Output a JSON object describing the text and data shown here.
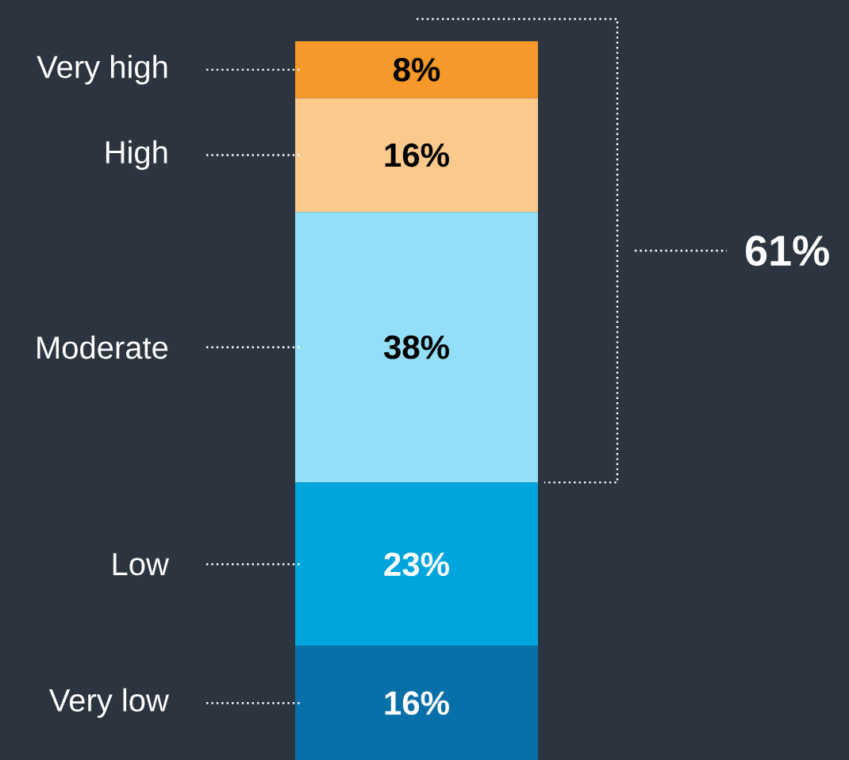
{
  "chart_data": {
    "type": "bar",
    "stacked": true,
    "categories": [
      null
    ],
    "series": [
      {
        "name": "Very low",
        "color": "#0870a8",
        "values": [
          16
        ],
        "value_labels": [
          "16%"
        ]
      },
      {
        "name": "Low",
        "color": "#00a5de",
        "values": [
          23
        ],
        "value_labels": [
          "23%"
        ]
      },
      {
        "name": "Moderate",
        "color": "#94dff8",
        "values": [
          38
        ],
        "value_labels": [
          "38%"
        ]
      },
      {
        "name": "High",
        "color": "#fcc98d",
        "values": [
          16
        ],
        "value_labels": [
          "16%"
        ]
      },
      {
        "name": "Very high",
        "color": "#f7982a",
        "values": [
          8
        ],
        "value_labels": [
          "8%"
        ]
      }
    ],
    "annotations": [
      "61%"
    ]
  }
}
